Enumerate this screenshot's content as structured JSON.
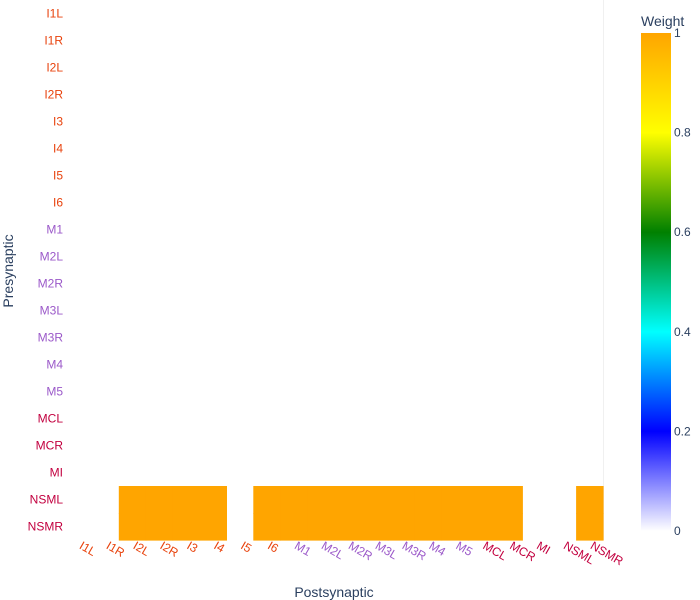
{
  "chart_data": {
    "type": "heatmap",
    "xlabel": "Postsynaptic",
    "ylabel": "Presynaptic",
    "x_categories": [
      "I1L",
      "I1R",
      "I2L",
      "I2R",
      "I3",
      "I4",
      "I5",
      "I6",
      "M1",
      "M2L",
      "M2R",
      "M3L",
      "M3R",
      "M4",
      "M5",
      "MCL",
      "MCR",
      "MI",
      "NSML",
      "NSMR"
    ],
    "y_categories": [
      "I1L",
      "I1R",
      "I2L",
      "I2R",
      "I3",
      "I4",
      "I5",
      "I6",
      "M1",
      "M2L",
      "M2R",
      "M3L",
      "M3R",
      "M4",
      "M5",
      "MCL",
      "MCR",
      "MI",
      "NSML",
      "NSMR"
    ],
    "label_colors": {
      "I1L": "#e8420c",
      "I1R": "#e8420c",
      "I2L": "#e8420c",
      "I2R": "#e8420c",
      "I3": "#e8420c",
      "I4": "#e8420c",
      "I5": "#e8420c",
      "I6": "#e8420c",
      "M1": "#9b59c9",
      "M2L": "#9b59c9",
      "M2R": "#9b59c9",
      "M3L": "#9b59c9",
      "M3R": "#9b59c9",
      "M4": "#9b59c9",
      "M5": "#9b59c9",
      "MCL": "#c2003f",
      "MCR": "#c2003f",
      "MI": "#c2003f",
      "NSML": "#c2003f",
      "NSMR": "#c2003f"
    },
    "connections": [
      {
        "pre": "NSML",
        "post": "I2L",
        "weight": 1
      },
      {
        "pre": "NSML",
        "post": "I2R",
        "weight": 1
      },
      {
        "pre": "NSML",
        "post": "I3",
        "weight": 1
      },
      {
        "pre": "NSML",
        "post": "I4",
        "weight": 1
      },
      {
        "pre": "NSML",
        "post": "I6",
        "weight": 1
      },
      {
        "pre": "NSML",
        "post": "M1",
        "weight": 1
      },
      {
        "pre": "NSML",
        "post": "M2L",
        "weight": 1
      },
      {
        "pre": "NSML",
        "post": "M2R",
        "weight": 1
      },
      {
        "pre": "NSML",
        "post": "M3L",
        "weight": 1
      },
      {
        "pre": "NSML",
        "post": "M3R",
        "weight": 1
      },
      {
        "pre": "NSML",
        "post": "M4",
        "weight": 1
      },
      {
        "pre": "NSML",
        "post": "M5",
        "weight": 1
      },
      {
        "pre": "NSML",
        "post": "MCL",
        "weight": 1
      },
      {
        "pre": "NSML",
        "post": "MCR",
        "weight": 1
      },
      {
        "pre": "NSML",
        "post": "NSMR",
        "weight": 1
      },
      {
        "pre": "NSMR",
        "post": "I2L",
        "weight": 1
      },
      {
        "pre": "NSMR",
        "post": "I2R",
        "weight": 1
      },
      {
        "pre": "NSMR",
        "post": "I3",
        "weight": 1
      },
      {
        "pre": "NSMR",
        "post": "I4",
        "weight": 1
      },
      {
        "pre": "NSMR",
        "post": "I6",
        "weight": 1
      },
      {
        "pre": "NSMR",
        "post": "M1",
        "weight": 1
      },
      {
        "pre": "NSMR",
        "post": "M2L",
        "weight": 1
      },
      {
        "pre": "NSMR",
        "post": "M2R",
        "weight": 1
      },
      {
        "pre": "NSMR",
        "post": "M3L",
        "weight": 1
      },
      {
        "pre": "NSMR",
        "post": "M3R",
        "weight": 1
      },
      {
        "pre": "NSMR",
        "post": "M4",
        "weight": 1
      },
      {
        "pre": "NSMR",
        "post": "M5",
        "weight": 1
      },
      {
        "pre": "NSMR",
        "post": "MCL",
        "weight": 1
      },
      {
        "pre": "NSMR",
        "post": "MCR",
        "weight": 1
      },
      {
        "pre": "NSMR",
        "post": "NSMR",
        "weight": 1
      }
    ],
    "cell_color": "#ffa500",
    "colorbar": {
      "title": "Weight",
      "range": [
        0,
        1
      ],
      "ticks": [
        "0",
        "0.2",
        "0.4",
        "0.6",
        "0.8",
        "1"
      ],
      "tick_values": [
        0,
        0.2,
        0.4,
        0.6,
        0.8,
        1
      ],
      "stops": [
        {
          "value": 0,
          "color": "#ffffff"
        },
        {
          "value": 0.2,
          "color": "#0000ff"
        },
        {
          "value": 0.4,
          "color": "#00ffff"
        },
        {
          "value": 0.6,
          "color": "#008000"
        },
        {
          "value": 0.8,
          "color": "#ffff00"
        },
        {
          "value": 1,
          "color": "#ffa500"
        }
      ]
    }
  }
}
